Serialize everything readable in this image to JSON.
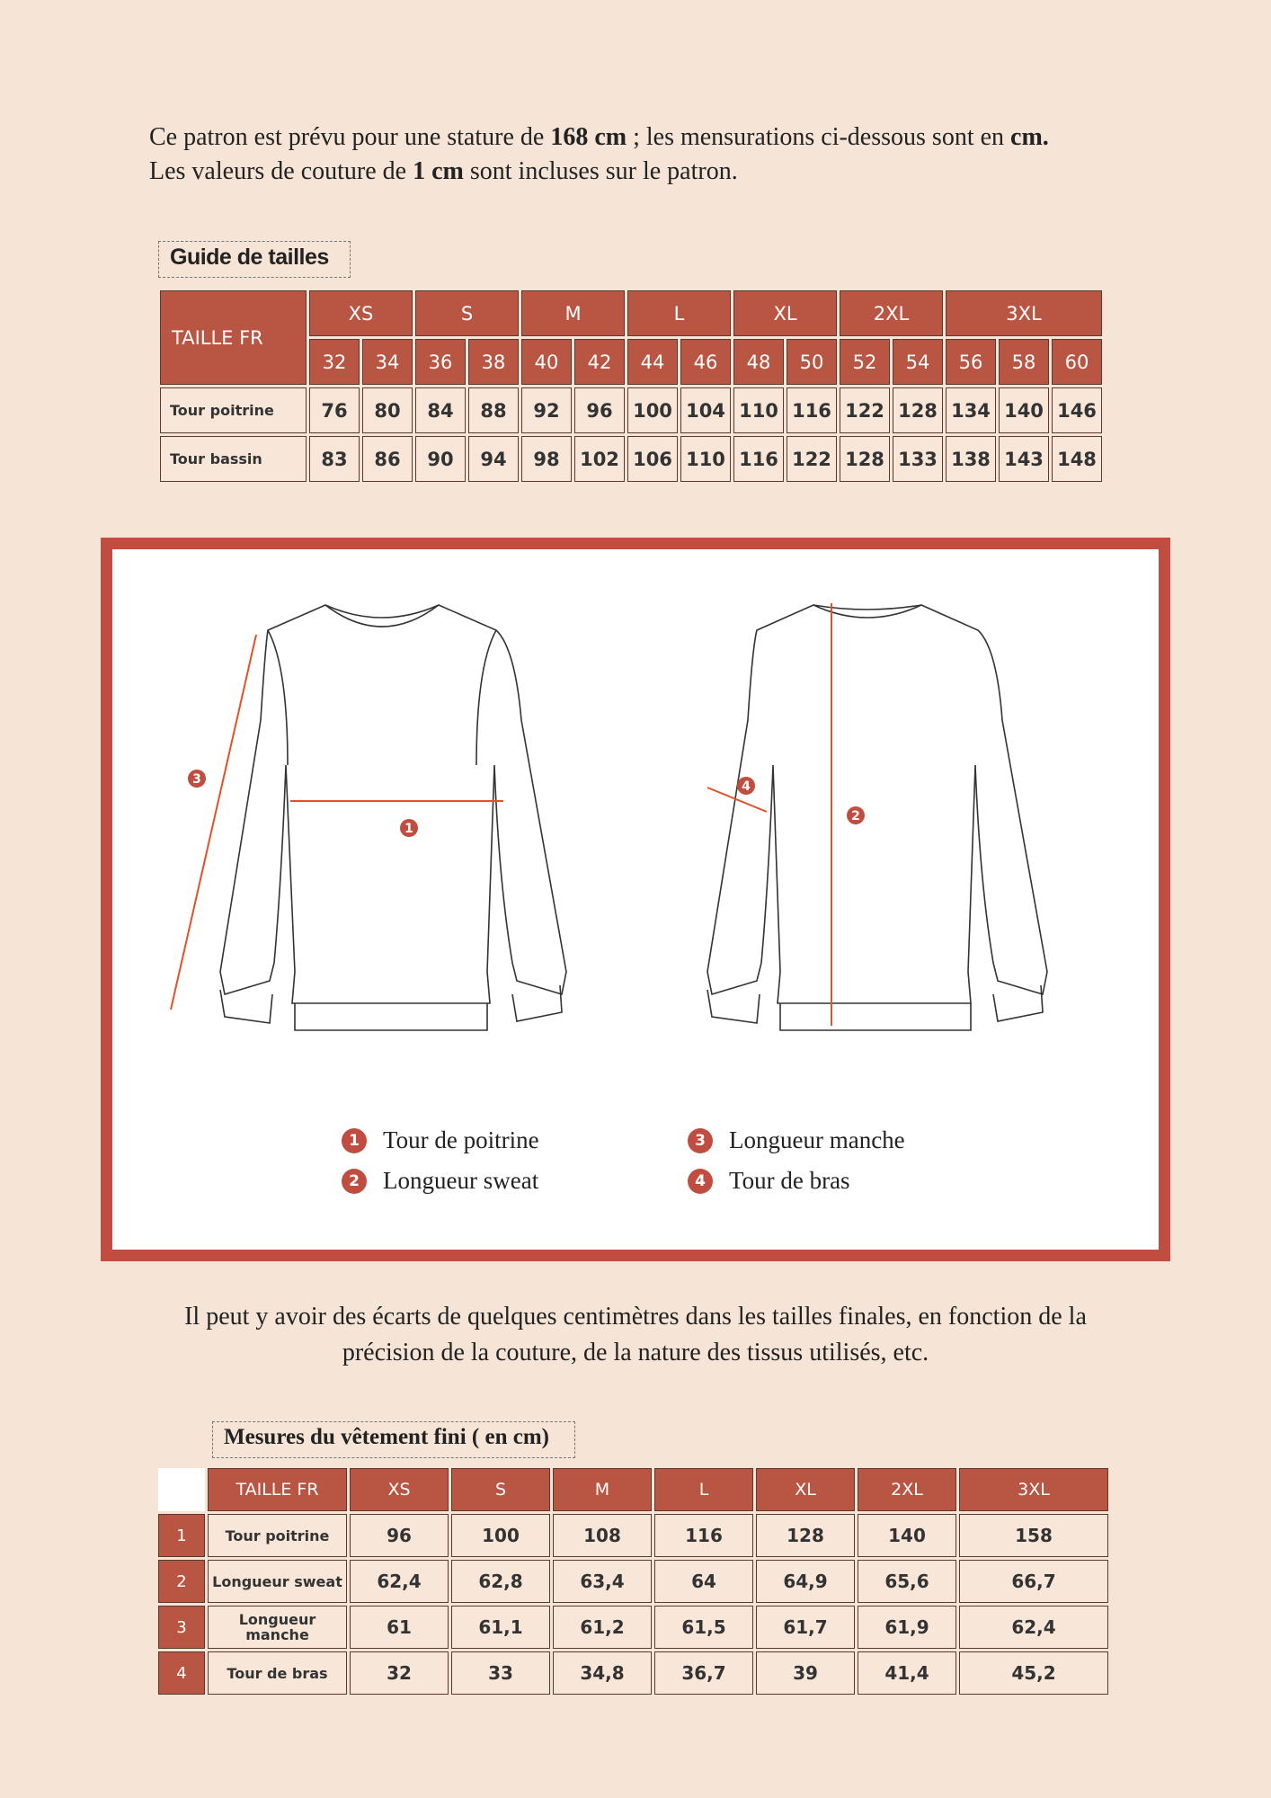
{
  "intro": {
    "line1_a": "Ce patron est prévu pour une stature de ",
    "line1_b": "168 cm",
    "line1_c": " ; les mensurations ci-dessous sont en ",
    "line1_d": "cm.",
    "line2_a": "Les valeurs de couture de ",
    "line2_b": "1 cm",
    "line2_c": " sont incluses sur le patron."
  },
  "size_guide": {
    "title": "Guide de tailles",
    "header": "TAILLE FR",
    "sizes": [
      "XS",
      "S",
      "M",
      "L",
      "XL",
      "2XL",
      "3XL"
    ],
    "numbers": [
      "32",
      "34",
      "36",
      "38",
      "40",
      "42",
      "44",
      "46",
      "48",
      "50",
      "52",
      "54",
      "56",
      "58",
      "60"
    ],
    "rows": [
      {
        "label": "Tour poitrine",
        "values": [
          "76",
          "80",
          "84",
          "88",
          "92",
          "96",
          "100",
          "104",
          "110",
          "116",
          "122",
          "128",
          "134",
          "140",
          "146"
        ]
      },
      {
        "label": "Tour bassin",
        "values": [
          "83",
          "86",
          "90",
          "94",
          "98",
          "102",
          "106",
          "110",
          "116",
          "122",
          "128",
          "133",
          "138",
          "143",
          "148"
        ]
      }
    ]
  },
  "diagram": {
    "markers": [
      "1",
      "2",
      "3",
      "4"
    ],
    "accent": "#c04d3f",
    "arrow_color": "#e0522a"
  },
  "legend": [
    {
      "num": "1",
      "label": "Tour de poitrine"
    },
    {
      "num": "2",
      "label": "Longueur sweat"
    },
    {
      "num": "3",
      "label": "Longueur manche"
    },
    {
      "num": "4",
      "label": "Tour de bras"
    }
  ],
  "note": {
    "line1": "Il peut y avoir des écarts de quelques centimètres dans les tailles finales, en fonction de la",
    "line2": "précision de la couture, de la nature des tissus utilisés, etc."
  },
  "finished": {
    "title": "Mesures du vêtement fini ( en cm)",
    "header": "TAILLE FR",
    "sizes": [
      "XS",
      "S",
      "M",
      "L",
      "XL",
      "2XL",
      "3XL"
    ],
    "rows": [
      {
        "num": "1",
        "label": "Tour poitrine",
        "values": [
          "96",
          "100",
          "108",
          "116",
          "128",
          "140",
          "158"
        ]
      },
      {
        "num": "2",
        "label": "Longueur sweat",
        "values": [
          "62,4",
          "62,8",
          "63,4",
          "64",
          "64,9",
          "65,6",
          "66,7"
        ]
      },
      {
        "num": "3",
        "label": "Longueur manche",
        "values": [
          "61",
          "61,1",
          "61,2",
          "61,5",
          "61,7",
          "61,9",
          "62,4"
        ]
      },
      {
        "num": "4",
        "label": "Tour de bras",
        "values": [
          "32",
          "33",
          "34,8",
          "36,7",
          "39",
          "41,4",
          "45,2"
        ]
      }
    ]
  }
}
